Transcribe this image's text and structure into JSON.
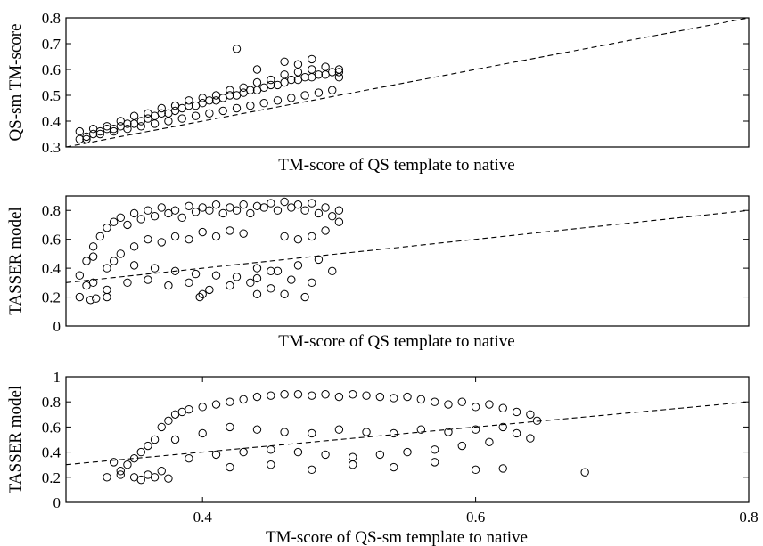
{
  "chart_data": [
    {
      "type": "scatter",
      "xlabel": "TM-score of QS template to native",
      "ylabel": "QS-sm TM-score",
      "xlim": [
        0.3,
        0.8
      ],
      "ylim": [
        0.3,
        0.8
      ],
      "xticks": [],
      "yticks": [
        0.3,
        0.4,
        0.5,
        0.6,
        0.7,
        0.8
      ],
      "ytick_labels": [
        "0.3",
        "0.4",
        "0.5",
        "0.6",
        "0.7",
        "0.8"
      ],
      "reference_line": {
        "style": "dashed",
        "from": [
          0.3,
          0.3
        ],
        "to": [
          0.8,
          0.8
        ]
      },
      "marker": "open-circle",
      "series": [
        {
          "x": [
            0.31,
            0.315,
            0.32,
            0.325,
            0.33,
            0.335,
            0.34,
            0.345,
            0.35,
            0.355,
            0.36,
            0.365,
            0.37,
            0.375,
            0.38,
            0.385,
            0.39,
            0.395,
            0.4,
            0.405,
            0.41,
            0.415,
            0.42,
            0.425,
            0.43,
            0.435,
            0.44,
            0.445,
            0.45,
            0.455,
            0.46,
            0.465,
            0.47,
            0.475,
            0.48,
            0.485,
            0.49,
            0.495,
            0.5,
            0.31,
            0.32,
            0.33,
            0.34,
            0.35,
            0.36,
            0.37,
            0.38,
            0.39,
            0.4,
            0.41,
            0.42,
            0.43,
            0.44,
            0.45,
            0.46,
            0.47,
            0.48,
            0.49,
            0.5,
            0.315,
            0.325,
            0.335,
            0.345,
            0.355,
            0.365,
            0.375,
            0.385,
            0.395,
            0.405,
            0.415,
            0.425,
            0.435,
            0.445,
            0.455,
            0.465,
            0.475,
            0.485,
            0.495,
            0.425,
            0.44,
            0.46,
            0.47,
            0.48,
            0.5
          ],
          "y": [
            0.33,
            0.34,
            0.35,
            0.36,
            0.37,
            0.37,
            0.38,
            0.39,
            0.39,
            0.4,
            0.41,
            0.42,
            0.43,
            0.43,
            0.44,
            0.45,
            0.46,
            0.46,
            0.47,
            0.48,
            0.48,
            0.49,
            0.5,
            0.5,
            0.51,
            0.52,
            0.52,
            0.53,
            0.54,
            0.54,
            0.55,
            0.56,
            0.56,
            0.57,
            0.57,
            0.58,
            0.58,
            0.59,
            0.59,
            0.36,
            0.37,
            0.38,
            0.4,
            0.42,
            0.43,
            0.45,
            0.46,
            0.48,
            0.49,
            0.5,
            0.52,
            0.53,
            0.55,
            0.56,
            0.58,
            0.59,
            0.6,
            0.61,
            0.6,
            0.33,
            0.35,
            0.36,
            0.37,
            0.38,
            0.39,
            0.4,
            0.41,
            0.42,
            0.43,
            0.44,
            0.45,
            0.46,
            0.47,
            0.48,
            0.49,
            0.5,
            0.51,
            0.52,
            0.68,
            0.6,
            0.63,
            0.62,
            0.64,
            0.57
          ]
        }
      ]
    },
    {
      "type": "scatter",
      "xlabel": "TM-score of QS template to native",
      "ylabel": "TASSER model",
      "xlim": [
        0.3,
        0.8
      ],
      "ylim": [
        0,
        0.9
      ],
      "xticks": [],
      "yticks": [
        0,
        0.2,
        0.4,
        0.6,
        0.8
      ],
      "ytick_labels": [
        "0",
        "0.2",
        "0.4",
        "0.6",
        "0.8"
      ],
      "reference_line": {
        "style": "dashed",
        "from": [
          0.3,
          0.3
        ],
        "to": [
          0.8,
          0.8
        ]
      },
      "marker": "open-circle",
      "series": [
        {
          "x": [
            0.31,
            0.31,
            0.315,
            0.315,
            0.32,
            0.32,
            0.325,
            0.33,
            0.33,
            0.335,
            0.34,
            0.34,
            0.345,
            0.35,
            0.35,
            0.355,
            0.36,
            0.36,
            0.365,
            0.37,
            0.37,
            0.375,
            0.38,
            0.38,
            0.385,
            0.39,
            0.39,
            0.395,
            0.4,
            0.4,
            0.405,
            0.41,
            0.41,
            0.415,
            0.42,
            0.42,
            0.425,
            0.43,
            0.43,
            0.435,
            0.44,
            0.44,
            0.445,
            0.45,
            0.45,
            0.455,
            0.46,
            0.46,
            0.465,
            0.47,
            0.47,
            0.475,
            0.48,
            0.48,
            0.485,
            0.49,
            0.49,
            0.495,
            0.5,
            0.5,
            0.32,
            0.335,
            0.35,
            0.365,
            0.38,
            0.395,
            0.41,
            0.425,
            0.44,
            0.455,
            0.47,
            0.485,
            0.33,
            0.345,
            0.36,
            0.375,
            0.39,
            0.405,
            0.42,
            0.435,
            0.45,
            0.465,
            0.48,
            0.495,
            0.318,
            0.322,
            0.33,
            0.398,
            0.4,
            0.46,
            0.475,
            0.44
          ],
          "y": [
            0.2,
            0.35,
            0.28,
            0.45,
            0.55,
            0.3,
            0.62,
            0.68,
            0.4,
            0.72,
            0.75,
            0.5,
            0.7,
            0.78,
            0.55,
            0.74,
            0.8,
            0.6,
            0.76,
            0.82,
            0.58,
            0.78,
            0.8,
            0.62,
            0.75,
            0.83,
            0.6,
            0.79,
            0.82,
            0.65,
            0.8,
            0.84,
            0.62,
            0.78,
            0.82,
            0.66,
            0.8,
            0.84,
            0.64,
            0.78,
            0.83,
            0.4,
            0.82,
            0.85,
            0.38,
            0.8,
            0.86,
            0.62,
            0.82,
            0.84,
            0.6,
            0.8,
            0.85,
            0.62,
            0.78,
            0.82,
            0.66,
            0.76,
            0.8,
            0.72,
            0.48,
            0.45,
            0.42,
            0.4,
            0.38,
            0.36,
            0.35,
            0.34,
            0.33,
            0.38,
            0.42,
            0.46,
            0.25,
            0.3,
            0.32,
            0.28,
            0.3,
            0.25,
            0.28,
            0.3,
            0.26,
            0.32,
            0.3,
            0.38,
            0.18,
            0.19,
            0.2,
            0.2,
            0.22,
            0.22,
            0.2,
            0.22
          ]
        }
      ]
    },
    {
      "type": "scatter",
      "xlabel": "TM-score of QS-sm template to native",
      "ylabel": "TASSER model",
      "xlim": [
        0.3,
        0.8
      ],
      "ylim": [
        0,
        1
      ],
      "xticks": [
        0.4,
        0.6,
        0.8
      ],
      "xtick_labels": [
        "0.4",
        "0.6",
        "0.8"
      ],
      "yticks": [
        0,
        0.2,
        0.4,
        0.6,
        0.8,
        1
      ],
      "ytick_labels": [
        "0",
        "0.2",
        "0.4",
        "0.6",
        "0.8",
        "1"
      ],
      "reference_line": {
        "style": "dashed",
        "from": [
          0.3,
          0.3
        ],
        "to": [
          0.8,
          0.8
        ]
      },
      "marker": "open-circle",
      "series": [
        {
          "x": [
            0.34,
            0.345,
            0.35,
            0.355,
            0.36,
            0.365,
            0.37,
            0.375,
            0.38,
            0.385,
            0.39,
            0.4,
            0.41,
            0.42,
            0.43,
            0.44,
            0.45,
            0.46,
            0.47,
            0.48,
            0.49,
            0.5,
            0.51,
            0.52,
            0.53,
            0.54,
            0.55,
            0.56,
            0.57,
            0.58,
            0.59,
            0.6,
            0.61,
            0.62,
            0.63,
            0.64,
            0.38,
            0.4,
            0.42,
            0.44,
            0.46,
            0.48,
            0.5,
            0.52,
            0.54,
            0.56,
            0.58,
            0.6,
            0.62,
            0.39,
            0.41,
            0.43,
            0.45,
            0.47,
            0.49,
            0.51,
            0.53,
            0.55,
            0.57,
            0.59,
            0.61,
            0.63,
            0.33,
            0.335,
            0.34,
            0.35,
            0.355,
            0.36,
            0.365,
            0.37,
            0.375,
            0.42,
            0.45,
            0.48,
            0.51,
            0.54,
            0.57,
            0.6,
            0.62,
            0.68,
            0.645,
            0.64
          ],
          "y": [
            0.25,
            0.3,
            0.35,
            0.4,
            0.45,
            0.5,
            0.6,
            0.65,
            0.7,
            0.72,
            0.74,
            0.76,
            0.78,
            0.8,
            0.82,
            0.84,
            0.85,
            0.86,
            0.86,
            0.85,
            0.86,
            0.84,
            0.86,
            0.85,
            0.84,
            0.83,
            0.84,
            0.82,
            0.8,
            0.78,
            0.8,
            0.76,
            0.78,
            0.75,
            0.72,
            0.7,
            0.5,
            0.55,
            0.6,
            0.58,
            0.56,
            0.55,
            0.58,
            0.56,
            0.55,
            0.58,
            0.56,
            0.58,
            0.6,
            0.35,
            0.38,
            0.4,
            0.42,
            0.4,
            0.38,
            0.36,
            0.38,
            0.4,
            0.42,
            0.45,
            0.48,
            0.55,
            0.2,
            0.32,
            0.22,
            0.2,
            0.18,
            0.22,
            0.2,
            0.25,
            0.19,
            0.28,
            0.3,
            0.26,
            0.3,
            0.28,
            0.32,
            0.26,
            0.27,
            0.24,
            0.65,
            0.51
          ]
        }
      ]
    }
  ]
}
